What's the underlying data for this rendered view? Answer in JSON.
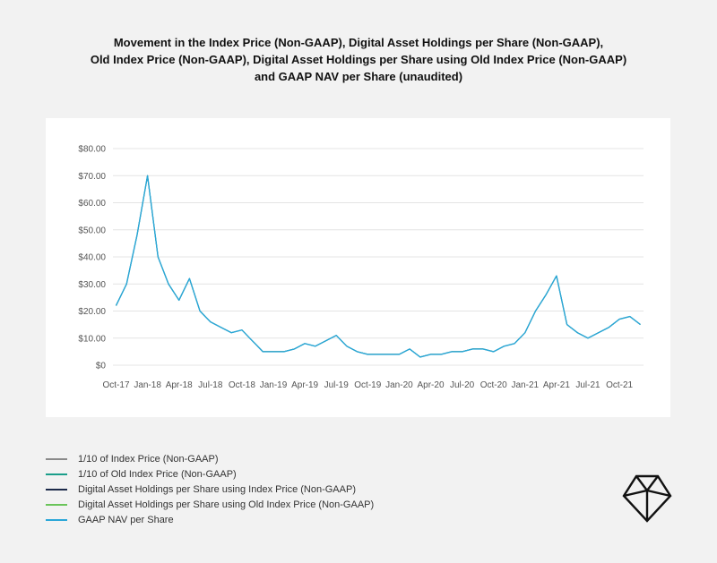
{
  "title_lines": [
    "Movement in the Index Price (Non-GAAP), Digital Asset Holdings per Share (Non-GAAP),",
    "Old Index Price (Non-GAAP), Digital Asset Holdings per Share using Old Index Price (Non-GAAP)",
    "and GAAP NAV per Share (unaudited)"
  ],
  "chart_data": {
    "type": "line",
    "title": "Movement in the Index Price (Non-GAAP), Digital Asset Holdings per Share (Non-GAAP), Old Index Price (Non-GAAP), Digital Asset Holdings per Share using Old Index Price (Non-GAAP) and GAAP NAV per Share (unaudited)",
    "ylim": [
      0,
      80
    ],
    "y_ticks": [
      "$0",
      "$10.00",
      "$20.00",
      "$30.00",
      "$40.00",
      "$50.00",
      "$60.00",
      "$70.00",
      "$80.00"
    ],
    "x_ticks": [
      "Oct-17",
      "Jan-18",
      "Apr-18",
      "Jul-18",
      "Oct-18",
      "Jan-19",
      "Apr-19",
      "Jul-19",
      "Oct-19",
      "Jan-20",
      "Apr-20",
      "Jul-20",
      "Oct-20",
      "Jan-21",
      "Apr-21",
      "Jul-21",
      "Oct-21"
    ],
    "grid": true,
    "legend_position": "bottom-left",
    "x": [
      "2017-10",
      "2017-11",
      "2017-12",
      "2018-01",
      "2018-02",
      "2018-03",
      "2018-04",
      "2018-05",
      "2018-06",
      "2018-07",
      "2018-08",
      "2018-09",
      "2018-10",
      "2018-11",
      "2018-12",
      "2019-01",
      "2019-02",
      "2019-03",
      "2019-04",
      "2019-05",
      "2019-06",
      "2019-07",
      "2019-08",
      "2019-09",
      "2019-10",
      "2019-11",
      "2019-12",
      "2020-01",
      "2020-02",
      "2020-03",
      "2020-04",
      "2020-05",
      "2020-06",
      "2020-07",
      "2020-08",
      "2020-09",
      "2020-10",
      "2020-11",
      "2020-12",
      "2021-01",
      "2021-02",
      "2021-03",
      "2021-04",
      "2021-05",
      "2021-06",
      "2021-07",
      "2021-08",
      "2021-09",
      "2021-10",
      "2021-11",
      "2021-12"
    ],
    "series": [
      {
        "name": "1/10 of Index Price (Non-GAAP)",
        "color": "#8a8a8a",
        "values": [
          22,
          30,
          48,
          70,
          40,
          30,
          24,
          32,
          20,
          16,
          14,
          12,
          13,
          9,
          5,
          5,
          5,
          6,
          8,
          7,
          9,
          11,
          7,
          5,
          4,
          4,
          4,
          4,
          6,
          3,
          4,
          4,
          5,
          5,
          6,
          6,
          5,
          7,
          8,
          12,
          20,
          26,
          33,
          15,
          12,
          10,
          12,
          14,
          17,
          18,
          15
        ]
      },
      {
        "name": "1/10 of Old Index Price (Non-GAAP)",
        "color": "#1a9e8a",
        "values": [
          22,
          30,
          48,
          70,
          40,
          30,
          24,
          32,
          20,
          16,
          14,
          12,
          13,
          9,
          5,
          5,
          5,
          6,
          8,
          7,
          9,
          11,
          7,
          5,
          4,
          4,
          4,
          4,
          6,
          3,
          4,
          4,
          5,
          5,
          6,
          6,
          5,
          7,
          8,
          12,
          20,
          26,
          33,
          15,
          12,
          10,
          12,
          14,
          17,
          18,
          15
        ]
      },
      {
        "name": "Digital Asset Holdings per Share using Index Price (Non-GAAP)",
        "color": "#1c2a4a",
        "values": [
          22,
          30,
          48,
          70,
          40,
          30,
          24,
          32,
          20,
          16,
          14,
          12,
          13,
          9,
          5,
          5,
          5,
          6,
          8,
          7,
          9,
          11,
          7,
          5,
          4,
          4,
          4,
          4,
          6,
          3,
          4,
          4,
          5,
          5,
          6,
          6,
          5,
          7,
          8,
          12,
          20,
          26,
          33,
          15,
          12,
          10,
          12,
          14,
          17,
          18,
          15
        ]
      },
      {
        "name": "Digital Asset Holdings per Share using Old Index Price (Non-GAAP)",
        "color": "#6ac45a",
        "values": [
          22,
          30,
          48,
          70,
          40,
          30,
          24,
          32,
          20,
          16,
          14,
          12,
          13,
          9,
          5,
          5,
          5,
          6,
          8,
          7,
          9,
          11,
          7,
          5,
          4,
          4,
          4,
          4,
          6,
          3,
          4,
          4,
          5,
          5,
          6,
          6,
          5,
          7,
          8,
          12,
          20,
          26,
          33,
          15,
          12,
          10,
          12,
          14,
          17,
          18,
          15
        ]
      },
      {
        "name": "GAAP NAV per Share",
        "color": "#2aa7d8",
        "values": [
          22,
          30,
          48,
          70,
          40,
          30,
          24,
          32,
          20,
          16,
          14,
          12,
          13,
          9,
          5,
          5,
          5,
          6,
          8,
          7,
          9,
          11,
          7,
          5,
          4,
          4,
          4,
          4,
          6,
          3,
          4,
          4,
          5,
          5,
          6,
          6,
          5,
          7,
          8,
          12,
          20,
          26,
          33,
          15,
          12,
          10,
          12,
          14,
          17,
          18,
          15
        ]
      }
    ]
  },
  "logo": {
    "name": "company-logo-icon"
  }
}
